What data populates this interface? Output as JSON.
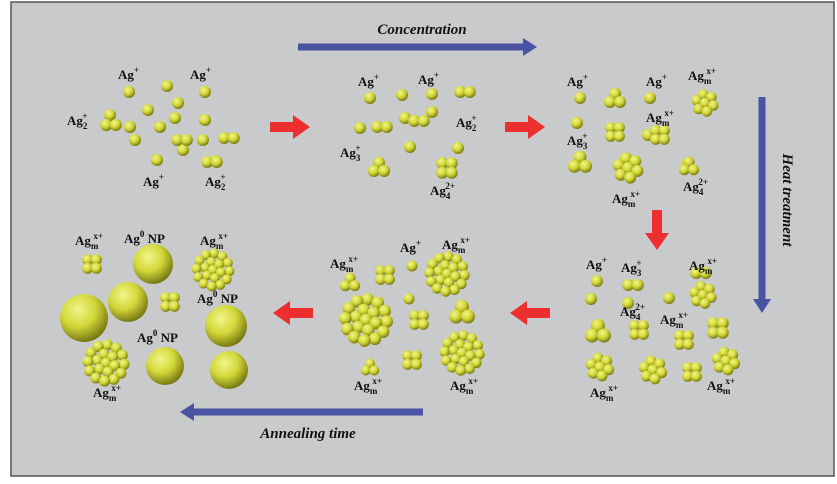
{
  "colors": {
    "background": "#c9cacb",
    "frame": "#555555",
    "sphere_light": "#f2f58a",
    "sphere_mid": "#d2d838",
    "sphere_dark": "#6f7010",
    "process_arrow": "#4a52a3",
    "step_arrow": "#ee2f2f"
  },
  "process_labels": {
    "concentration": "Concentration",
    "heat_treatment": "Heat treatment",
    "annealing_time": "Annealing time"
  },
  "species": {
    "ag": {
      "base": "Ag",
      "sup": "+",
      "sub": ""
    },
    "ag2": {
      "base": "Ag",
      "sup": "+",
      "sub": "2"
    },
    "ag3": {
      "base": "Ag",
      "sup": "+",
      "sub": "3"
    },
    "ag4": {
      "base": "Ag",
      "sup": "2+",
      "sub": "4"
    },
    "agm": {
      "base": "Ag",
      "sup": "x+",
      "sub": "m"
    },
    "ag0": {
      "base": "Ag",
      "sup": "0",
      "sub": "",
      "suffix": " NP"
    }
  },
  "icons": {
    "sphere": "silver-ion-sphere-icon",
    "cluster": "silver-cluster-icon",
    "nanoparticle": "silver-nanoparticle-icon",
    "step_arrow": "step-arrow-icon"
  }
}
